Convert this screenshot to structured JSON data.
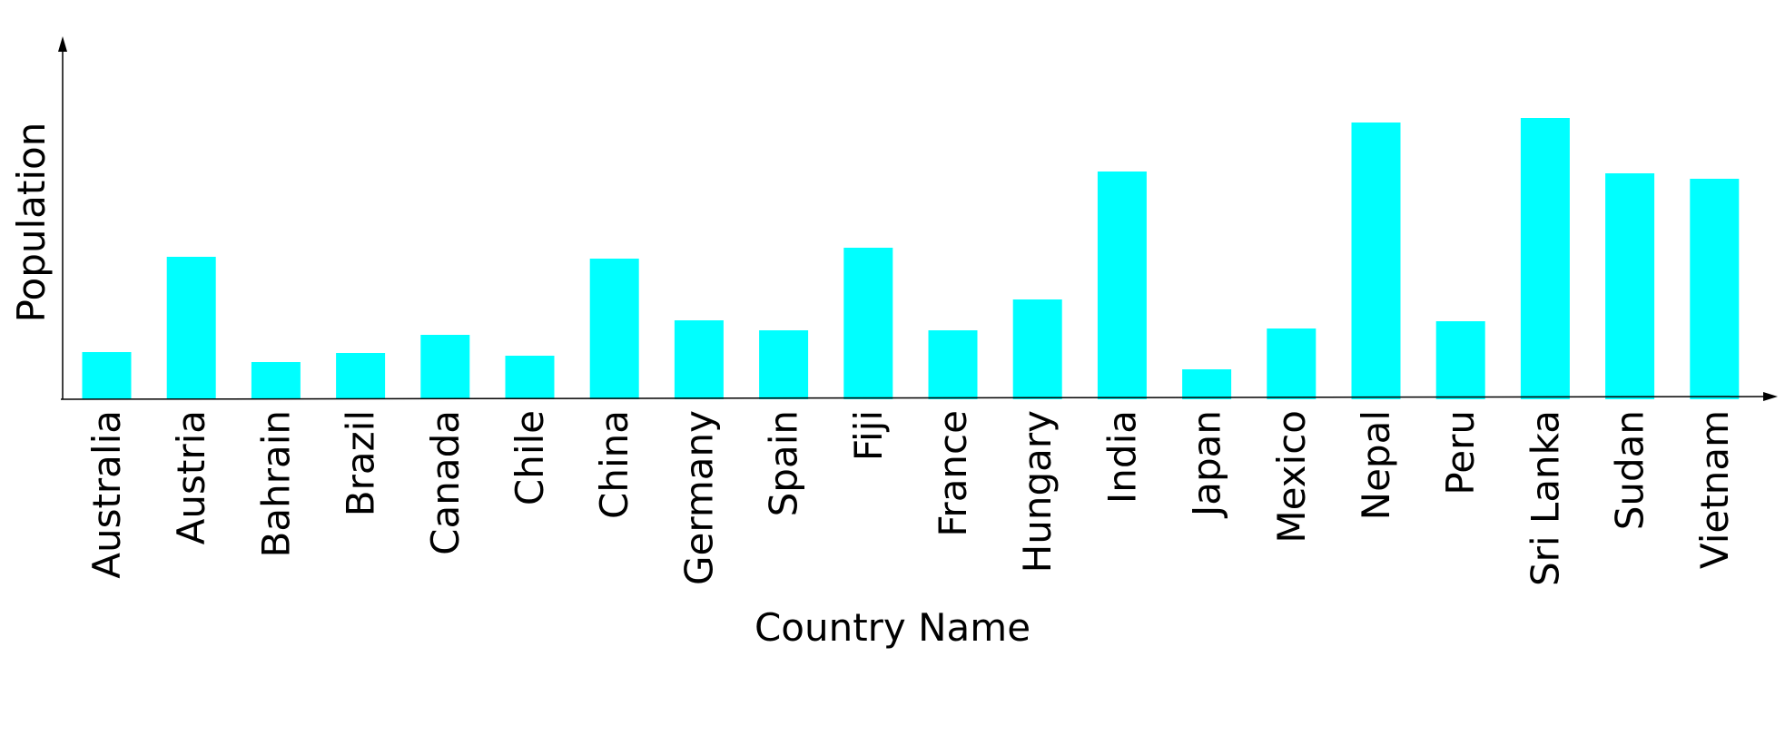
{
  "chart_data": {
    "type": "bar",
    "title": "",
    "xlabel": "Country Name",
    "ylabel": "Population",
    "categories": [
      "Australia",
      "Austria",
      "Bahrain",
      "Brazil",
      "Canada",
      "Chile",
      "China",
      "Germany",
      "Spain",
      "Fiji",
      "France",
      "Hungary",
      "India",
      "Japan",
      "Mexico",
      "Nepal",
      "Peru",
      "Sri Lanka",
      "Sudan",
      "Vietnam"
    ],
    "values": [
      52,
      157,
      41,
      51,
      71,
      48,
      155,
      87,
      76,
      167,
      76,
      110,
      251,
      33,
      78,
      305,
      86,
      310,
      249,
      243
    ],
    "ylim": [
      0,
      400
    ],
    "grid": false,
    "legend": "none",
    "color": "#00FFFF"
  }
}
